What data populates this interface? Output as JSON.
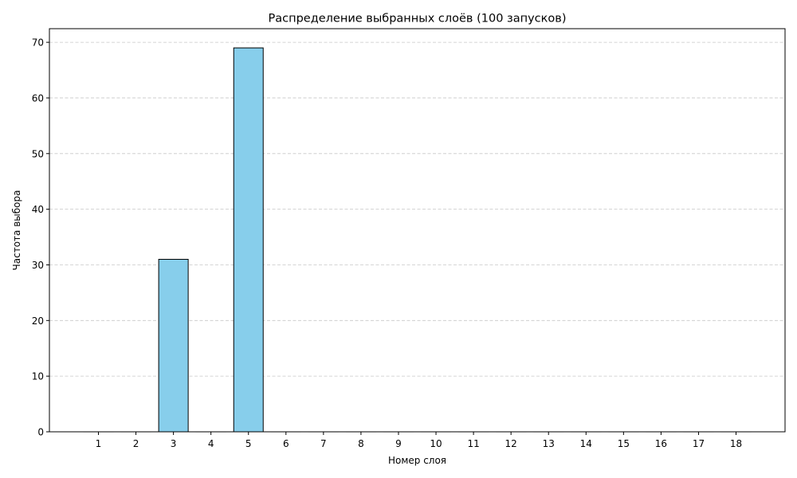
{
  "chart_data": {
    "type": "bar",
    "title": "Распределение выбранных слоёв (100 запусков)",
    "xlabel": "Номер слоя",
    "ylabel": "Частота выбора",
    "categories": [
      "1",
      "2",
      "3",
      "4",
      "5",
      "6",
      "7",
      "8",
      "9",
      "10",
      "11",
      "12",
      "13",
      "14",
      "15",
      "16",
      "17",
      "18"
    ],
    "values": [
      0,
      0,
      31,
      0,
      69,
      0,
      0,
      0,
      0,
      0,
      0,
      0,
      0,
      0,
      0,
      0,
      0,
      0
    ],
    "ylim": [
      0,
      72.45
    ],
    "yticks": [
      0,
      10,
      20,
      30,
      40,
      50,
      60,
      70
    ],
    "grid": "y-dashed",
    "colors": {
      "bar_fill": "#87CEEB",
      "bar_edge": "#000000",
      "grid": "#c7c7c7"
    }
  }
}
